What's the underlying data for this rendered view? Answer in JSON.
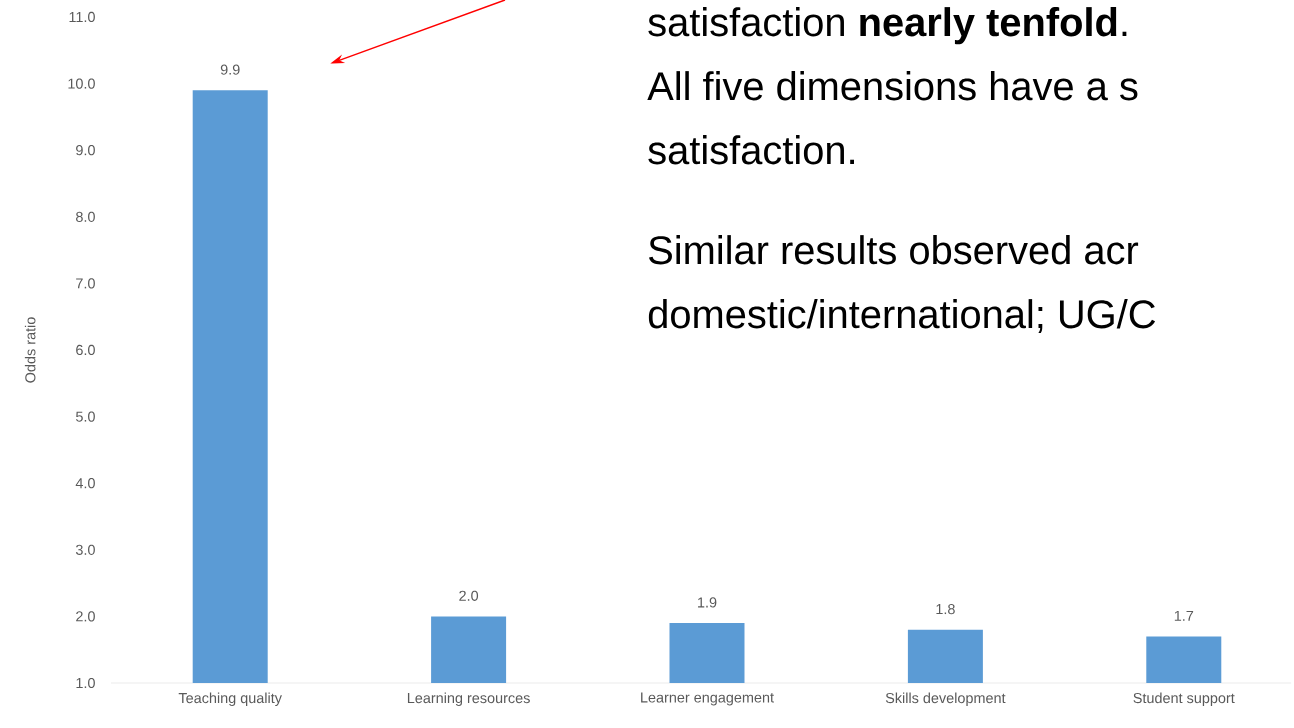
{
  "chart_data": {
    "type": "bar",
    "ylabel": "Odds ratio",
    "categories": [
      "Teaching quality",
      "Learning resources",
      "Learner engagement",
      "Skills development",
      "Student support"
    ],
    "values": [
      9.9,
      2.0,
      1.9,
      1.8,
      1.7
    ],
    "color": "#5b9bd5",
    "value_labels": [
      "9.9",
      "2.0",
      "1.9",
      "1.8",
      "1.7"
    ],
    "ylim": [
      1,
      11
    ],
    "yticks": [
      {
        "value": 1,
        "label": "1.0"
      },
      {
        "value": 2,
        "label": "2.0"
      },
      {
        "value": 3,
        "label": "3.0"
      },
      {
        "value": 4,
        "label": "4.0"
      },
      {
        "value": 5,
        "label": "5.0"
      },
      {
        "value": 6,
        "label": "6.0"
      },
      {
        "value": 7,
        "label": "7.0"
      },
      {
        "value": 8,
        "label": "8.0"
      },
      {
        "value": 9,
        "label": "9.0"
      },
      {
        "value": 10,
        "label": "10.0"
      },
      {
        "value": 11,
        "label": "11.0"
      }
    ],
    "annotations": [
      "satisfaction **nearly tenfold**.",
      "All five dimensions have a s",
      "satisfaction.",
      "Similar results observed acr",
      "domestic/international; UG/C"
    ]
  }
}
